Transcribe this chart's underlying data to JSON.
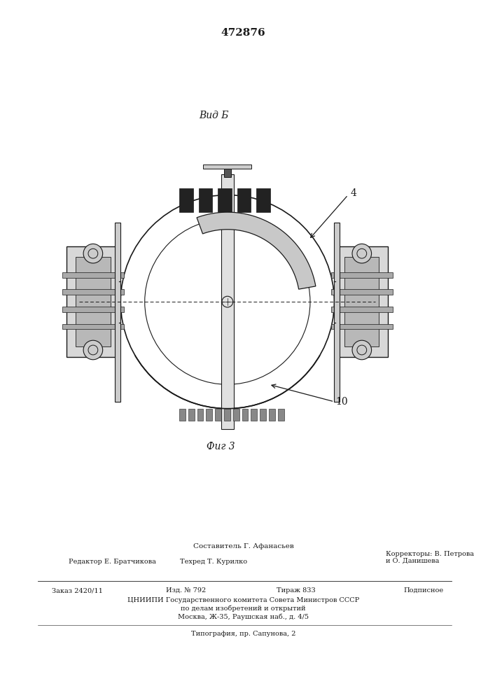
{
  "patent_number": "472876",
  "fig_label": "Фиг 3",
  "view_label": "Вид Б",
  "label_4": "4",
  "label_10": "10",
  "footer_compiler": "Составитель Г. Афанасьев",
  "footer_editor": "Редактор Е. Братчикова",
  "footer_techred": "Техред Т. Курилко",
  "footer_correctors": "Корректоры: В. Петрова\nи О. Данишева",
  "footer_order": "Заказ 2420/11",
  "footer_izd": "Изд. № 792",
  "footer_tirazh": "Тираж 833",
  "footer_podpisnoe": "Подписное",
  "footer_cniip1": "ЦНИИПИ Государственного комитета Совета Министров СССР",
  "footer_cniip2": "по делам изобретений и открытий",
  "footer_cniip3": "Москва, Ж-35, Раушская наб., д. 4/5",
  "footer_tipografia": "Типография, пр. Сапунова, 2",
  "bg_color": "#ffffff",
  "line_color": "#1a1a1a",
  "text_color": "#1a1a1a"
}
